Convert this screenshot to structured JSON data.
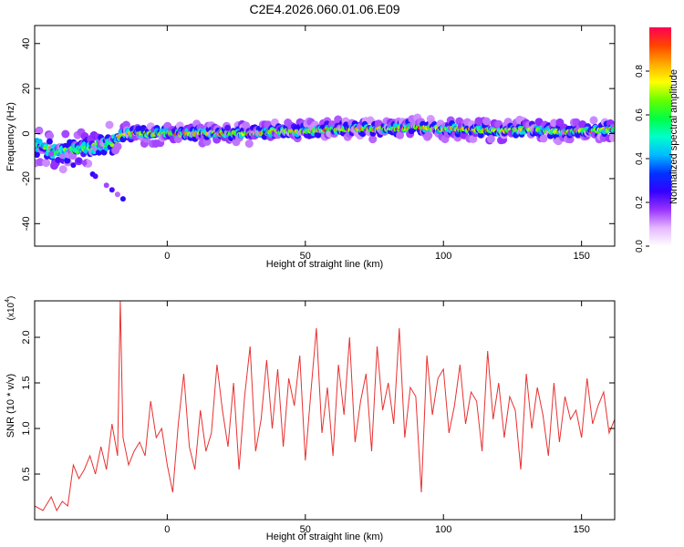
{
  "figure_title": "C2E4.2026.060.01.06.E09",
  "chart_data": [
    {
      "type": "heatmap",
      "title": "",
      "xlabel": "Height of straight line (km)",
      "ylabel": "Frequency (Hz)",
      "xlim": [
        -48,
        162
      ],
      "ylim": [
        -50,
        48
      ],
      "xticks": [
        0,
        50,
        100,
        150
      ],
      "yticks": [
        -40,
        -20,
        0,
        20,
        40
      ],
      "colorbar": {
        "label": "Normalized spectral amplitude",
        "range": [
          0,
          1
        ],
        "ticks": [
          0.0,
          0.2,
          0.4,
          0.6,
          0.8
        ],
        "colors": [
          "#ffffff",
          "#e6b8ff",
          "#9933ff",
          "#3300ff",
          "#0033ff",
          "#00bbff",
          "#00ffcc",
          "#00ff44",
          "#66ff00",
          "#ffff00",
          "#ffaa00",
          "#ff4400",
          "#ff0055"
        ]
      },
      "ridge": {
        "x": [
          -48,
          -44,
          -40,
          -36,
          -32,
          -28,
          -24,
          -20,
          -16,
          -10,
          0,
          10,
          20,
          30,
          40,
          50,
          60,
          70,
          80,
          90,
          100,
          110,
          120,
          130,
          140,
          150,
          160
        ],
        "y": [
          -5,
          -6,
          -9,
          -8,
          -7,
          -6,
          -5,
          -4,
          0,
          0,
          0,
          0,
          0,
          0,
          1,
          1,
          2,
          2,
          2,
          3,
          2,
          2,
          1,
          2,
          1,
          1,
          2
        ]
      }
    },
    {
      "type": "line",
      "title": "",
      "xlabel": "Height of straight line (km)",
      "ylabel": "SNR (10 * v/v)",
      "yscale_label": "(x10",
      "yscale_exponent": "4",
      "xlim": [
        -48,
        162
      ],
      "ylim": [
        0,
        2.4
      ],
      "xticks": [
        0,
        50,
        100,
        150
      ],
      "yticks": [
        0.5,
        1.0,
        1.5,
        2.0
      ],
      "color": "#e83030",
      "x": [
        -48,
        -45,
        -42,
        -40,
        -38,
        -36,
        -34,
        -32,
        -30,
        -28,
        -26,
        -24,
        -22,
        -20,
        -18,
        -17,
        -16,
        -14,
        -12,
        -10,
        -8,
        -6,
        -4,
        -2,
        0,
        2,
        4,
        6,
        8,
        10,
        12,
        14,
        16,
        18,
        20,
        22,
        24,
        26,
        28,
        30,
        32,
        34,
        36,
        38,
        40,
        42,
        44,
        46,
        48,
        50,
        52,
        54,
        56,
        58,
        60,
        62,
        64,
        66,
        68,
        70,
        72,
        74,
        76,
        78,
        80,
        82,
        84,
        86,
        88,
        90,
        92,
        94,
        96,
        98,
        100,
        102,
        104,
        106,
        108,
        110,
        112,
        114,
        116,
        118,
        120,
        122,
        124,
        126,
        128,
        130,
        132,
        134,
        136,
        138,
        140,
        142,
        144,
        146,
        148,
        150,
        152,
        154,
        156,
        158,
        160,
        162
      ],
      "values": [
        0.15,
        0.1,
        0.25,
        0.1,
        0.2,
        0.15,
        0.6,
        0.45,
        0.55,
        0.7,
        0.5,
        0.8,
        0.55,
        1.05,
        0.7,
        2.4,
        0.9,
        0.6,
        0.75,
        0.85,
        0.7,
        1.3,
        0.9,
        1.0,
        0.6,
        0.3,
        1.05,
        1.6,
        0.8,
        0.55,
        1.2,
        0.75,
        0.95,
        1.7,
        1.2,
        0.8,
        1.5,
        0.55,
        1.35,
        1.9,
        0.75,
        1.1,
        1.75,
        1.0,
        1.65,
        0.8,
        1.55,
        1.25,
        1.8,
        0.65,
        1.4,
        2.1,
        0.95,
        1.45,
        0.7,
        1.7,
        1.15,
        2.0,
        0.85,
        1.3,
        1.6,
        0.75,
        1.9,
        1.2,
        1.5,
        1.05,
        2.1,
        0.9,
        1.45,
        1.35,
        0.3,
        1.8,
        1.15,
        1.55,
        1.65,
        0.95,
        1.25,
        1.7,
        1.05,
        1.4,
        1.3,
        0.75,
        1.85,
        1.1,
        1.5,
        0.9,
        1.35,
        1.2,
        0.55,
        1.6,
        1.0,
        1.45,
        1.15,
        0.7,
        1.5,
        0.85,
        1.35,
        1.1,
        1.2,
        0.9,
        1.55,
        1.05,
        1.25,
        1.4,
        0.95,
        1.1
      ]
    }
  ]
}
